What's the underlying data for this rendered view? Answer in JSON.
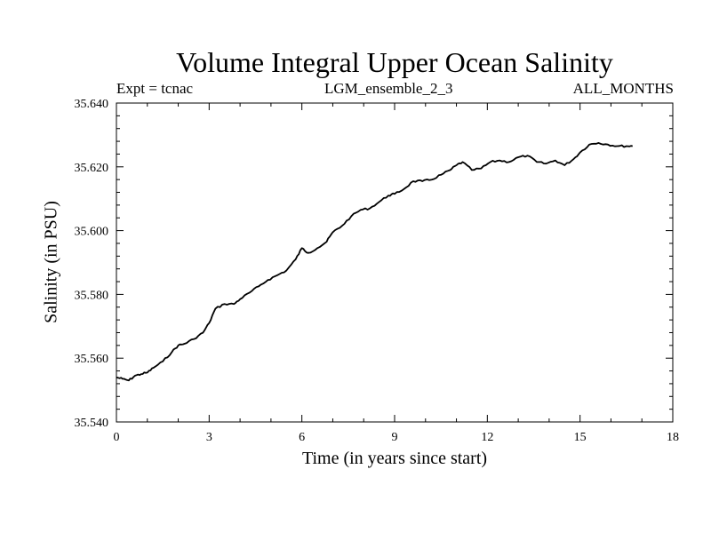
{
  "header": {
    "title": "Volume Integral Upper Ocean Salinity",
    "left_label": "Expt = tcnac",
    "center_label": "LGM_ensemble_2_3",
    "right_label": "ALL_MONTHS"
  },
  "chart_data": {
    "type": "line",
    "title": "Volume Integral Upper Ocean Salinity",
    "xlabel": "Time (in years since start)",
    "ylabel": "Salinity (in PSU)",
    "xlim": [
      0,
      18
    ],
    "ylim": [
      35.54,
      35.64
    ],
    "xticks": [
      0,
      3,
      6,
      9,
      12,
      15,
      18
    ],
    "xtick_labels": [
      "0",
      "3",
      "6",
      "9",
      "12",
      "15",
      "18"
    ],
    "yticks": [
      35.54,
      35.56,
      35.58,
      35.6,
      35.62,
      35.64
    ],
    "ytick_labels": [
      "35.540",
      "35.560",
      "35.580",
      "35.600",
      "35.620",
      "35.640"
    ],
    "grid": false,
    "series": [
      {
        "name": "salinity",
        "x": [
          0,
          0.2,
          0.4,
          0.6,
          0.8,
          1.0,
          1.2,
          1.5,
          1.8,
          2.0,
          2.2,
          2.5,
          2.8,
          3.0,
          3.2,
          3.5,
          3.8,
          4.0,
          4.3,
          4.6,
          4.9,
          5.2,
          5.5,
          5.8,
          6.0,
          6.2,
          6.5,
          6.8,
          7.0,
          7.3,
          7.6,
          7.9,
          8.2,
          8.5,
          8.8,
          9.0,
          9.3,
          9.6,
          9.9,
          10.2,
          10.5,
          10.8,
          11.0,
          11.2,
          11.5,
          11.8,
          12.1,
          12.4,
          12.7,
          13.0,
          13.3,
          13.6,
          13.9,
          14.2,
          14.5,
          14.8,
          15.0,
          15.3,
          15.6,
          15.9,
          16.2,
          16.5,
          16.7
        ],
        "y": [
          35.554,
          35.5535,
          35.553,
          35.5545,
          35.555,
          35.5555,
          35.557,
          35.559,
          35.562,
          35.564,
          35.5645,
          35.566,
          35.568,
          35.571,
          35.5755,
          35.577,
          35.577,
          35.5785,
          35.5805,
          35.5825,
          35.5845,
          35.586,
          35.5875,
          35.591,
          35.5945,
          35.593,
          35.5945,
          35.5965,
          35.5995,
          35.6015,
          35.6045,
          35.6065,
          35.607,
          35.609,
          35.611,
          35.6115,
          35.613,
          35.6155,
          35.6155,
          35.616,
          35.6175,
          35.619,
          35.6205,
          35.6215,
          35.619,
          35.6195,
          35.6215,
          35.622,
          35.6215,
          35.623,
          35.6235,
          35.6215,
          35.621,
          35.622,
          35.6205,
          35.6225,
          35.6245,
          35.627,
          35.6275,
          35.627,
          35.6265,
          35.6265,
          35.6265
        ]
      }
    ]
  }
}
